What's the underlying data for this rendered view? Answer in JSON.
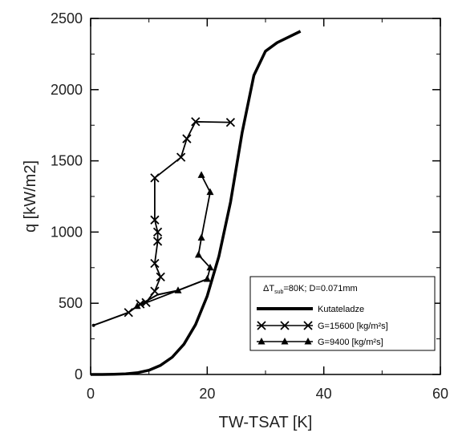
{
  "chart_data": {
    "type": "scatter",
    "xlabel": "TW-TSAT [K]",
    "ylabel": "q [kW/m2]",
    "xlim": [
      0,
      60
    ],
    "ylim": [
      0,
      2500
    ],
    "x_ticks": [
      0,
      20,
      40,
      60
    ],
    "y_ticks": [
      0,
      500,
      1000,
      1500,
      2000,
      2500
    ],
    "x_tick_labels": [
      "0",
      "20",
      "40",
      "60"
    ],
    "y_tick_labels": [
      "0",
      "500",
      "1000",
      "1500",
      "2000",
      "2500"
    ],
    "legend": {
      "position": "bottom-right",
      "title_parts": [
        "ΔT",
        "sub",
        "=80K; D=0.071mm"
      ],
      "entries": [
        "Kutateladze",
        "G=15600 [kg/m²s]",
        "G=9400 [kg/m²s]"
      ]
    },
    "series": [
      {
        "name": "Kutateladze",
        "marker": "none",
        "line_width": "thick",
        "x": [
          0,
          2,
          4,
          6,
          8,
          10,
          12,
          14,
          16,
          18,
          20,
          22,
          24,
          26,
          28,
          30,
          32,
          34,
          36
        ],
        "y": [
          0,
          0,
          1,
          4,
          12,
          30,
          64,
          121,
          212,
          350,
          550,
          830,
          1210,
          1700,
          2100,
          2270,
          2330,
          2370,
          2410
        ]
      },
      {
        "name": "G=15600 [kg/m²s]",
        "marker": "x",
        "x": [
          24,
          18,
          16.5,
          15.5,
          11,
          11,
          11.5,
          11.5,
          11,
          12,
          11,
          9.5,
          8.5,
          6.5
        ],
        "y": [
          1770,
          1775,
          1655,
          1525,
          1380,
          1085,
          1000,
          935,
          780,
          685,
          585,
          505,
          495,
          435
        ]
      },
      {
        "name": "G=9400 [kg/m²s]",
        "marker": "triangle",
        "x": [
          19,
          20.5,
          19,
          18.5,
          20.5,
          20,
          15,
          8
        ],
        "y": [
          1400,
          1280,
          960,
          840,
          750,
          670,
          590,
          480
        ]
      }
    ],
    "connecting_line": {
      "x": [
        0.5,
        6.5,
        8,
        11.5,
        15,
        20
      ],
      "y": [
        345,
        435,
        480,
        560,
        590,
        670
      ]
    }
  }
}
